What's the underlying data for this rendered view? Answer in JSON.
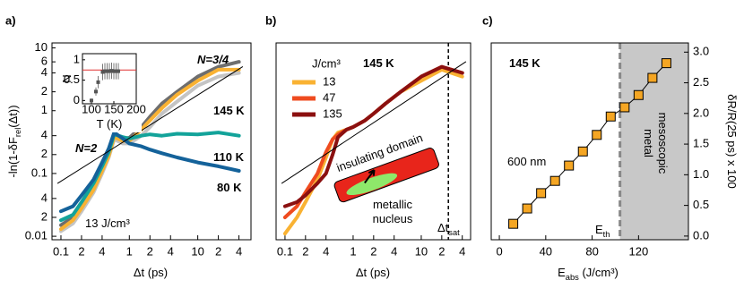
{
  "chart_data": [
    {
      "panel": "a)",
      "type": "line",
      "xscale": "log",
      "yscale": "log",
      "xlim": [
        0.074,
        60
      ],
      "ylim": [
        0.0088,
        12
      ],
      "xticks": [
        0.1,
        {
          "value": 0.2,
          "label": "2"
        },
        {
          "value": 0.4,
          "label": "4"
        },
        1,
        2,
        4,
        10,
        {
          "value": 20,
          "label": "2"
        },
        {
          "value": 40,
          "label": "4"
        }
      ],
      "yticks": [
        0.01,
        {
          "value": 0.02,
          "label": "2"
        },
        {
          "value": 0.04,
          "label": "4"
        },
        0.1,
        {
          "value": 0.2,
          "label": "2"
        },
        {
          "value": 0.4,
          "label": "4"
        },
        1,
        2,
        4,
        6,
        10
      ],
      "xlabel": [
        "Δt (ps)"
      ],
      "ylabel": [
        "-ln(1-δF",
        "rel",
        "(Δt))"
      ],
      "x": [
        0.1,
        0.15,
        0.2,
        0.3,
        0.4,
        0.5,
        0.6,
        0.8,
        1,
        1.5,
        2,
        3,
        5,
        10,
        20,
        40
      ],
      "series": [
        {
          "color": "#c4c4c4",
          "values": [
            0.012,
            0.016,
            0.025,
            0.05,
            0.1,
            0.18,
            0.35,
            0.3,
            0.3,
            0.4,
            0.55,
            0.9,
            1.4,
            2.5,
            3.5,
            4
          ]
        },
        {
          "color": "#6e6e6e",
          "values": [
            0.015,
            0.02,
            0.03,
            0.06,
            0.12,
            0.2,
            0.4,
            0.36,
            0.37,
            0.55,
            0.8,
            1.3,
            2.0,
            3.5,
            5,
            6
          ]
        },
        {
          "color": "#f9b233",
          "values": [
            0.013,
            0.018,
            0.028,
            0.055,
            0.11,
            0.19,
            0.38,
            0.33,
            0.33,
            0.5,
            0.7,
            1.1,
            1.8,
            3,
            4.5,
            4.5
          ]
        },
        {
          "color": "#13a39a",
          "values": [
            0.018,
            0.022,
            0.035,
            0.07,
            0.13,
            0.22,
            0.42,
            0.38,
            0.36,
            0.4,
            0.42,
            0.4,
            0.43,
            0.42,
            0.45,
            0.4
          ]
        },
        {
          "color": "#14629a",
          "values": [
            0.025,
            0.03,
            0.045,
            0.08,
            0.15,
            0.25,
            0.45,
            0.36,
            0.3,
            0.27,
            0.24,
            0.21,
            0.18,
            0.15,
            0.13,
            0.11
          ]
        },
        {
          "color": "#000000",
          "x": [
            0.09,
            45
          ],
          "values": [
            0.07,
            5
          ]
        }
      ],
      "annotations": [
        [
          "N=2"
        ],
        [
          "N=3/4"
        ],
        [
          "145 K"
        ],
        [
          "110 K"
        ],
        [
          "80 K"
        ],
        [
          "13 J/cm³"
        ]
      ]
    },
    {
      "type": "scatter",
      "xlim": [
        80,
        200
      ],
      "ylim": [
        -0.08,
        1.15
      ],
      "xticks": [
        100,
        150,
        200
      ],
      "yticks": [
        0,
        0.5,
        1
      ],
      "xlabel": [
        "T (K)"
      ],
      "ylabel": [
        "N"
      ],
      "x": [
        100,
        110,
        115,
        125,
        130,
        135,
        140,
        145,
        150,
        155,
        160
      ],
      "values": [
        0.0,
        0.22,
        0.45,
        0.7,
        0.72,
        0.72,
        0.72,
        0.73,
        0.72,
        0.72,
        0.72
      ],
      "errors": [
        0.05,
        0.1,
        0.15,
        0.2,
        0.2,
        0.2,
        0.2,
        0.2,
        0.2,
        0.2,
        0.2
      ],
      "color": "#555555",
      "hline": 0.75,
      "hline_color": "#e03030"
    },
    {
      "panel": "b)",
      "type": "line",
      "xscale": "log",
      "yscale": "log",
      "xlim": [
        0.074,
        53
      ],
      "ylim": [
        0.0088,
        12
      ],
      "xticks": [
        0.1,
        {
          "value": 0.2,
          "label": "2"
        },
        {
          "value": 0.4,
          "label": "4"
        },
        1,
        2,
        4,
        10,
        {
          "value": 20,
          "label": "2"
        },
        {
          "value": 40,
          "label": "4"
        }
      ],
      "xlabel": [
        "Δt (ps)"
      ],
      "legend_title": "J/cm³",
      "legend": "upper left",
      "x": [
        0.1,
        0.15,
        0.2,
        0.3,
        0.4,
        0.5,
        0.6,
        0.8,
        1,
        1.5,
        2,
        3,
        5,
        10,
        20,
        40
      ],
      "series": [
        {
          "name": "13",
          "color": "#f9b233",
          "values": [
            0.011,
            0.02,
            0.035,
            0.08,
            0.18,
            0.35,
            0.45,
            0.5,
            0.55,
            0.7,
            0.9,
            1.3,
            2,
            3,
            4.5,
            3.5
          ]
        },
        {
          "name": "47",
          "color": "#ef4b1f",
          "values": [
            0.02,
            0.03,
            0.05,
            0.1,
            0.22,
            0.35,
            0.42,
            0.5,
            0.55,
            0.7,
            0.9,
            1.3,
            2,
            3.5,
            5,
            4
          ]
        },
        {
          "name": "135",
          "color": "#8b1010",
          "values": [
            0.03,
            0.035,
            0.045,
            0.07,
            0.1,
            0.2,
            0.38,
            0.5,
            0.55,
            0.7,
            0.9,
            1.3,
            2,
            3.5,
            5,
            4
          ]
        },
        {
          "color": "#000000",
          "x": [
            0.09,
            45
          ],
          "values": [
            0.07,
            6
          ]
        }
      ],
      "tsat": 25,
      "annotations": [
        [
          "145 K"
        ],
        [
          "insulating domain"
        ],
        [
          "metallic"
        ],
        [
          "nucleus"
        ],
        [
          "Δt",
          "sat"
        ]
      ]
    },
    {
      "panel": "c)",
      "type": "scatter",
      "xlim": [
        -7,
        163
      ],
      "ylim": [
        -0.06,
        3.15
      ],
      "xticks": [
        0,
        40,
        80,
        120
      ],
      "yticks": [
        {
          "value": 0,
          "label": "0.0"
        },
        0.5,
        {
          "value": 1,
          "label": "1.0"
        },
        1.5,
        {
          "value": 2,
          "label": "2.0"
        },
        2.5,
        {
          "value": 3,
          "label": "3.0"
        }
      ],
      "yaxis": "right",
      "xlabel": [
        "E",
        "abs",
        " (J/cm³)"
      ],
      "ylabel": [
        "δR/R(25 ps) x 100"
      ],
      "x": [
        12,
        24,
        36,
        48,
        60,
        72,
        84,
        96,
        108,
        120,
        132,
        144
      ],
      "values": [
        0.2,
        0.45,
        0.7,
        0.9,
        1.15,
        1.38,
        1.65,
        1.95,
        2.1,
        2.3,
        2.58,
        2.82
      ],
      "color": "#f5a623",
      "threshold": 104,
      "shade": "#c8c8c8",
      "annotations": [
        [
          "145 K"
        ],
        [
          "600 nm"
        ],
        [
          "E",
          "th"
        ],
        [
          "mesoscopic"
        ],
        [
          "metal"
        ]
      ]
    }
  ]
}
